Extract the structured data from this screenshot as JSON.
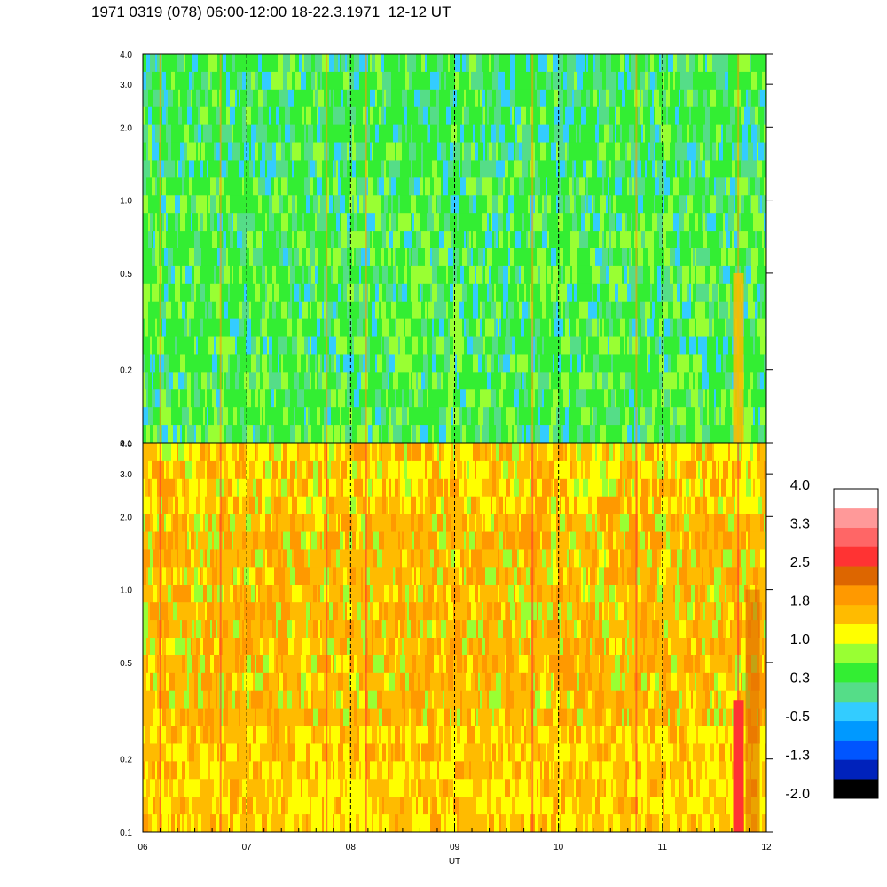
{
  "title": "1971 0319 (078) 06:00-12:00 18-22.3.1971  12-12 UT",
  "chart_data": {
    "type": "heatmap",
    "title": "1971 0319 (078) 06:00-12:00 18-22.3.1971  12-12 UT",
    "xlabel": "UT",
    "x_range": [
      6,
      12
    ],
    "x_ticks": [
      6,
      7,
      8,
      9,
      10,
      11,
      12
    ],
    "x_tick_labels": [
      "06",
      "07",
      "08",
      "09",
      "10",
      "11",
      "12"
    ],
    "x_dashed_gridlines": [
      7,
      8,
      9,
      10,
      11
    ],
    "y_scale": "log",
    "y_range": [
      0.1,
      4.0
    ],
    "y_ticks": [
      0.1,
      0.2,
      0.5,
      1.0,
      2.0,
      3.0,
      4.0
    ],
    "y_tick_labels": [
      "0.1",
      "0.2",
      "0.5",
      "1.0",
      "2.0",
      "3.0",
      "4.0"
    ],
    "panels": [
      {
        "id": "upper",
        "dominant_level": 0.3,
        "background_colors": [
          "#33ee33",
          "#99ff33",
          "#55dd88",
          "#33ccff"
        ]
      },
      {
        "id": "lower",
        "dominant_level": 1.8,
        "background_colors": [
          "#ffbb00",
          "#ff9900",
          "#ffff00",
          "#99ff33"
        ]
      }
    ],
    "colorbar": {
      "tick_labels": [
        "4.0",
        "3.3",
        "2.5",
        "1.8",
        "1.0",
        "0.3",
        "-0.5",
        "-1.3",
        "-2.0"
      ],
      "colors": [
        "#000000",
        "#0022bb",
        "#0055ff",
        "#0099ff",
        "#33ccff",
        "#55dd88",
        "#33ee33",
        "#99ff33",
        "#ffff00",
        "#ffbb00",
        "#ff9900",
        "#dd6600",
        "#ff3333",
        "#ff6666",
        "#ff9999",
        "#ffffff"
      ]
    }
  }
}
